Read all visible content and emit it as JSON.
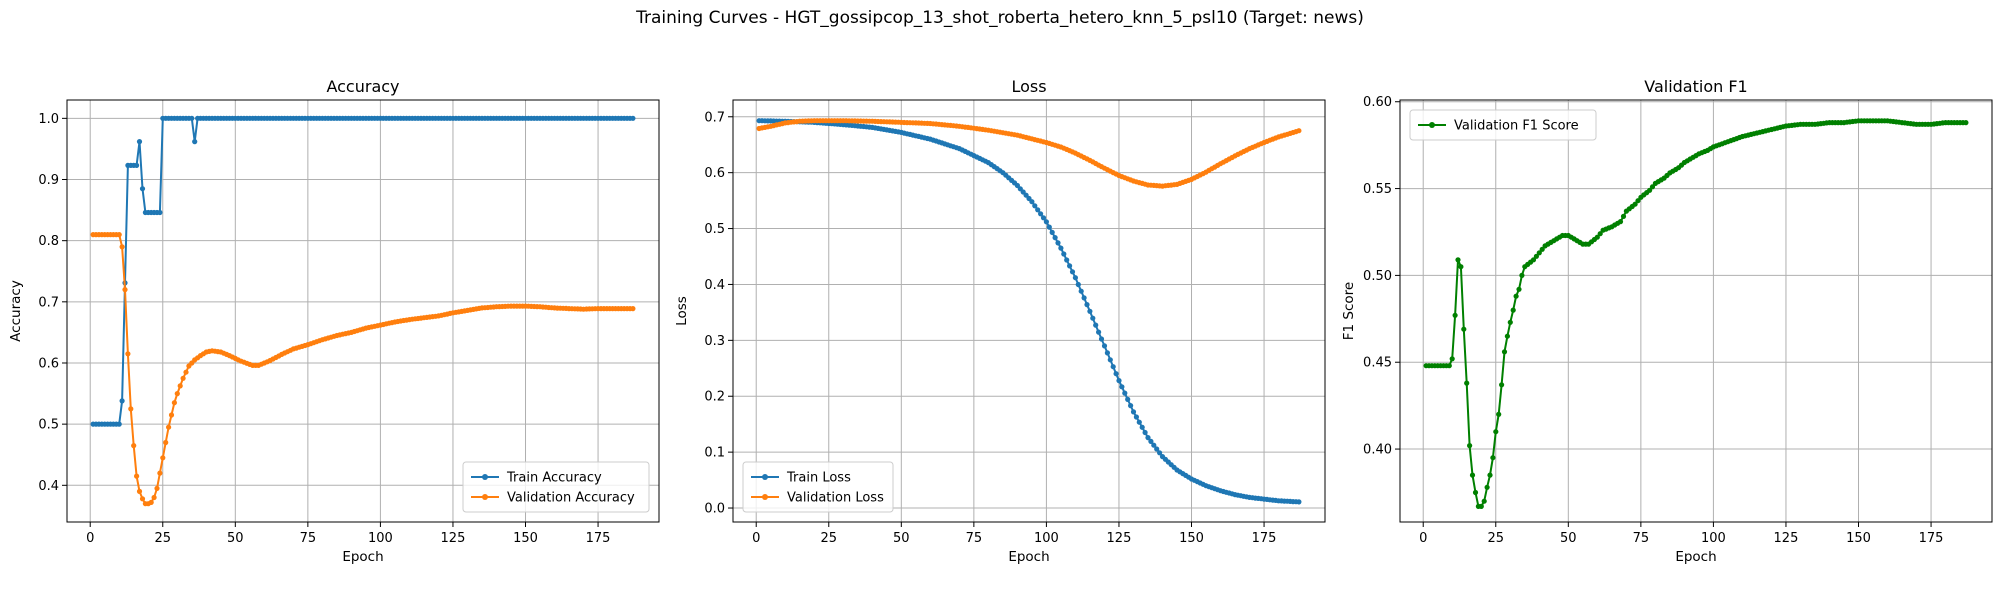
{
  "figure": {
    "suptitle": "Training Curves - HGT_gossipcop_13_shot_roberta_hetero_knn_5_psl10 (Target: news)"
  },
  "colors": {
    "train": "#1f77b4",
    "validation": "#ff7f0e",
    "f1": "#008000",
    "grid": "#b0b0b0"
  },
  "chart_data": [
    {
      "type": "line",
      "title": "Accuracy",
      "xlabel": "Epoch",
      "ylabel": "Accuracy",
      "xlim": [
        -8,
        196
      ],
      "ylim": [
        0.34,
        1.03
      ],
      "xticks": [
        0,
        25,
        50,
        75,
        100,
        125,
        150,
        175
      ],
      "yticks": [
        0.4,
        0.5,
        0.6,
        0.7,
        0.8,
        0.9,
        1.0
      ],
      "ytick_format": 1,
      "grid": true,
      "legend_position": "lower-right",
      "series": [
        {
          "name": "Train Accuracy",
          "color": "#1f77b4",
          "points": [
            [
              1,
              0.5
            ],
            [
              2,
              0.5
            ],
            [
              3,
              0.5
            ],
            [
              4,
              0.5
            ],
            [
              5,
              0.5
            ],
            [
              6,
              0.5
            ],
            [
              7,
              0.5
            ],
            [
              8,
              0.5
            ],
            [
              9,
              0.5
            ],
            [
              10,
              0.5
            ],
            [
              11,
              0.538
            ],
            [
              12,
              0.731
            ],
            [
              13,
              0.923
            ],
            [
              14,
              0.923
            ],
            [
              15,
              0.923
            ],
            [
              16,
              0.923
            ],
            [
              17,
              0.962
            ],
            [
              18,
              0.885
            ],
            [
              19,
              0.846
            ],
            [
              20,
              0.846
            ],
            [
              21,
              0.846
            ],
            [
              22,
              0.846
            ],
            [
              23,
              0.846
            ],
            [
              24,
              0.846
            ],
            [
              25,
              1.0
            ],
            [
              26,
              1.0
            ],
            [
              27,
              1.0
            ],
            [
              28,
              1.0
            ],
            [
              29,
              1.0
            ],
            [
              30,
              1.0
            ],
            [
              31,
              1.0
            ],
            [
              32,
              1.0
            ],
            [
              33,
              1.0
            ],
            [
              34,
              1.0
            ],
            [
              35,
              1.0
            ],
            [
              36,
              0.962
            ],
            [
              37,
              1.0
            ],
            [
              38,
              1.0
            ],
            [
              187,
              1.0
            ]
          ],
          "fill_step": 1
        },
        {
          "name": "Validation Accuracy",
          "color": "#ff7f0e",
          "points": [
            [
              1,
              0.81
            ],
            [
              10,
              0.81
            ],
            [
              11,
              0.79
            ],
            [
              12,
              0.72
            ],
            [
              13,
              0.615
            ],
            [
              14,
              0.525
            ],
            [
              15,
              0.465
            ],
            [
              16,
              0.415
            ],
            [
              17,
              0.39
            ],
            [
              18,
              0.378
            ],
            [
              19,
              0.37
            ],
            [
              20,
              0.37
            ],
            [
              21,
              0.372
            ],
            [
              22,
              0.38
            ],
            [
              23,
              0.395
            ],
            [
              24,
              0.42
            ],
            [
              25,
              0.445
            ],
            [
              26,
              0.47
            ],
            [
              27,
              0.495
            ],
            [
              28,
              0.515
            ],
            [
              29,
              0.535
            ],
            [
              30,
              0.55
            ],
            [
              32,
              0.575
            ],
            [
              34,
              0.595
            ],
            [
              36,
              0.605
            ],
            [
              38,
              0.612
            ],
            [
              40,
              0.618
            ],
            [
              42,
              0.62
            ],
            [
              45,
              0.618
            ],
            [
              48,
              0.612
            ],
            [
              52,
              0.603
            ],
            [
              56,
              0.596
            ],
            [
              58,
              0.596
            ],
            [
              62,
              0.604
            ],
            [
              66,
              0.614
            ],
            [
              70,
              0.623
            ],
            [
              75,
              0.63
            ],
            [
              80,
              0.638
            ],
            [
              85,
              0.645
            ],
            [
              90,
              0.65
            ],
            [
              95,
              0.657
            ],
            [
              100,
              0.662
            ],
            [
              105,
              0.667
            ],
            [
              110,
              0.671
            ],
            [
              115,
              0.674
            ],
            [
              120,
              0.677
            ],
            [
              125,
              0.682
            ],
            [
              130,
              0.686
            ],
            [
              135,
              0.69
            ],
            [
              140,
              0.692
            ],
            [
              145,
              0.693
            ],
            [
              150,
              0.693
            ],
            [
              155,
              0.692
            ],
            [
              160,
              0.69
            ],
            [
              165,
              0.689
            ],
            [
              170,
              0.688
            ],
            [
              175,
              0.689
            ],
            [
              180,
              0.689
            ],
            [
              187,
              0.689
            ]
          ],
          "fill_step": 1
        }
      ]
    },
    {
      "type": "line",
      "title": "Loss",
      "xlabel": "Epoch",
      "ylabel": "Loss",
      "xlim": [
        -8,
        196
      ],
      "ylim": [
        -0.025,
        0.73
      ],
      "xticks": [
        0,
        25,
        50,
        75,
        100,
        125,
        150,
        175
      ],
      "yticks": [
        0.0,
        0.1,
        0.2,
        0.3,
        0.4,
        0.5,
        0.6,
        0.7
      ],
      "ytick_format": 1,
      "grid": true,
      "legend_position": "lower-left",
      "series": [
        {
          "name": "Train Loss",
          "color": "#1f77b4",
          "points": [
            [
              1,
              0.693
            ],
            [
              10,
              0.692
            ],
            [
              20,
              0.69
            ],
            [
              30,
              0.686
            ],
            [
              40,
              0.681
            ],
            [
              50,
              0.672
            ],
            [
              60,
              0.66
            ],
            [
              70,
              0.643
            ],
            [
              80,
              0.618
            ],
            [
              85,
              0.6
            ],
            [
              90,
              0.577
            ],
            [
              95,
              0.548
            ],
            [
              100,
              0.512
            ],
            [
              105,
              0.465
            ],
            [
              110,
              0.412
            ],
            [
              115,
              0.352
            ],
            [
              120,
              0.29
            ],
            [
              125,
              0.228
            ],
            [
              130,
              0.172
            ],
            [
              135,
              0.126
            ],
            [
              140,
              0.092
            ],
            [
              145,
              0.068
            ],
            [
              150,
              0.052
            ],
            [
              155,
              0.04
            ],
            [
              160,
              0.031
            ],
            [
              165,
              0.024
            ],
            [
              170,
              0.019
            ],
            [
              175,
              0.016
            ],
            [
              180,
              0.013
            ],
            [
              187,
              0.011
            ]
          ],
          "fill_step": 1
        },
        {
          "name": "Validation Loss",
          "color": "#ff7f0e",
          "points": [
            [
              1,
              0.679
            ],
            [
              5,
              0.683
            ],
            [
              10,
              0.689
            ],
            [
              15,
              0.692
            ],
            [
              20,
              0.693
            ],
            [
              25,
              0.693
            ],
            [
              30,
              0.693
            ],
            [
              40,
              0.692
            ],
            [
              50,
              0.69
            ],
            [
              60,
              0.688
            ],
            [
              70,
              0.683
            ],
            [
              80,
              0.676
            ],
            [
              90,
              0.667
            ],
            [
              100,
              0.654
            ],
            [
              105,
              0.646
            ],
            [
              110,
              0.635
            ],
            [
              115,
              0.622
            ],
            [
              120,
              0.608
            ],
            [
              125,
              0.595
            ],
            [
              130,
              0.585
            ],
            [
              135,
              0.578
            ],
            [
              140,
              0.576
            ],
            [
              145,
              0.579
            ],
            [
              150,
              0.588
            ],
            [
              155,
              0.601
            ],
            [
              160,
              0.616
            ],
            [
              165,
              0.63
            ],
            [
              170,
              0.643
            ],
            [
              175,
              0.654
            ],
            [
              180,
              0.664
            ],
            [
              187,
              0.675
            ]
          ],
          "fill_step": 1
        }
      ]
    },
    {
      "type": "line",
      "title": "Validation F1",
      "xlabel": "Epoch",
      "ylabel": "F1 Score",
      "xlim": [
        -8,
        196
      ],
      "ylim": [
        0.358,
        0.601
      ],
      "xticks": [
        0,
        25,
        50,
        75,
        100,
        125,
        150,
        175
      ],
      "yticks": [
        0.4,
        0.45,
        0.5,
        0.55,
        0.6
      ],
      "ytick_format": 2,
      "grid": true,
      "legend_position": "upper-left",
      "series": [
        {
          "name": "Validation F1 Score",
          "color": "#008000",
          "points": [
            [
              1,
              0.448
            ],
            [
              9,
              0.448
            ],
            [
              10,
              0.452
            ],
            [
              11,
              0.477
            ],
            [
              12,
              0.509
            ],
            [
              13,
              0.505
            ],
            [
              14,
              0.469
            ],
            [
              15,
              0.438
            ],
            [
              16,
              0.402
            ],
            [
              17,
              0.385
            ],
            [
              18,
              0.375
            ],
            [
              19,
              0.367
            ],
            [
              20,
              0.367
            ],
            [
              21,
              0.37
            ],
            [
              22,
              0.378
            ],
            [
              23,
              0.385
            ],
            [
              24,
              0.395
            ],
            [
              25,
              0.41
            ],
            [
              26,
              0.42
            ],
            [
              27,
              0.437
            ],
            [
              28,
              0.456
            ],
            [
              29,
              0.465
            ],
            [
              30,
              0.473
            ],
            [
              31,
              0.48
            ],
            [
              32,
              0.488
            ],
            [
              33,
              0.492
            ],
            [
              34,
              0.5
            ],
            [
              35,
              0.505
            ],
            [
              38,
              0.509
            ],
            [
              40,
              0.513
            ],
            [
              42,
              0.517
            ],
            [
              45,
              0.52
            ],
            [
              48,
              0.523
            ],
            [
              50,
              0.523
            ],
            [
              52,
              0.521
            ],
            [
              55,
              0.518
            ],
            [
              57,
              0.518
            ],
            [
              60,
              0.522
            ],
            [
              62,
              0.526
            ],
            [
              65,
              0.528
            ],
            [
              68,
              0.531
            ],
            [
              70,
              0.537
            ],
            [
              73,
              0.541
            ],
            [
              75,
              0.545
            ],
            [
              78,
              0.549
            ],
            [
              80,
              0.553
            ],
            [
              83,
              0.556
            ],
            [
              85,
              0.559
            ],
            [
              88,
              0.562
            ],
            [
              90,
              0.565
            ],
            [
              93,
              0.568
            ],
            [
              95,
              0.57
            ],
            [
              98,
              0.572
            ],
            [
              100,
              0.574
            ],
            [
              105,
              0.577
            ],
            [
              110,
              0.58
            ],
            [
              115,
              0.582
            ],
            [
              120,
              0.584
            ],
            [
              125,
              0.586
            ],
            [
              130,
              0.587
            ],
            [
              135,
              0.587
            ],
            [
              140,
              0.588
            ],
            [
              145,
              0.588
            ],
            [
              150,
              0.589
            ],
            [
              155,
              0.589
            ],
            [
              160,
              0.589
            ],
            [
              165,
              0.588
            ],
            [
              170,
              0.587
            ],
            [
              175,
              0.587
            ],
            [
              180,
              0.588
            ],
            [
              187,
              0.588
            ]
          ],
          "fill_step": 1
        }
      ]
    }
  ]
}
